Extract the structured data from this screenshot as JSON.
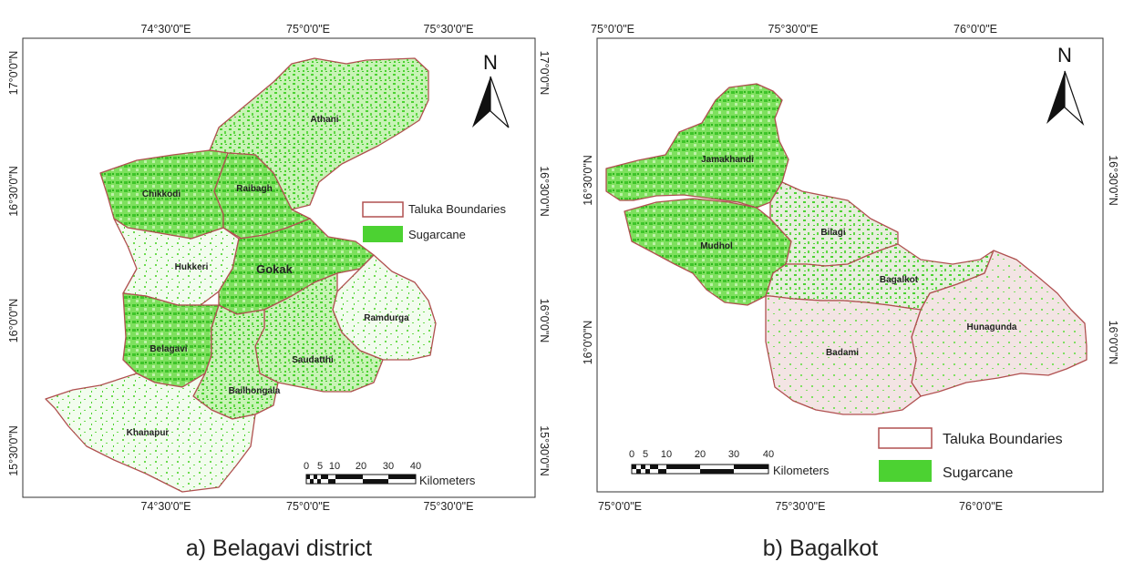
{
  "colors": {
    "sugarcane": "#4cd232",
    "boundary": "#b05050",
    "bagalkot_fill": "#f3e4e4",
    "frame": "#333333"
  },
  "map_a": {
    "caption": "a) Belagavi district",
    "north": "N",
    "lon_top": [
      "74°30'0\"E",
      "75°0'0\"E",
      "75°30'0\"E"
    ],
    "lon_bottom": [
      "74°30'0\"E",
      "75°0'0\"E",
      "75°30'0\"E"
    ],
    "lat_left": [
      "17°0'0\"N",
      "16°30'0\"N",
      "16°0'0\"N",
      "15°30'0\"N"
    ],
    "lat_right": [
      "17°0'0\"N",
      "16°30'0\"N",
      "16°0'0\"N",
      "15°30'0\"N"
    ],
    "talukas": [
      "Athani",
      "Chikkodi",
      "Raibagh",
      "Hukkeri",
      "Gokak",
      "Ramdurga",
      "Belagavi",
      "Saudatthi",
      "Bailhongala",
      "Khanapur"
    ],
    "legend": [
      "Taluka Boundaries",
      "Sugarcane"
    ],
    "scale_ticks": [
      "0",
      "5",
      "10",
      "20",
      "30",
      "40"
    ],
    "scale_unit": "Kilometers"
  },
  "map_b": {
    "caption": "b) Bagalkot",
    "north": "N",
    "lon_top": [
      "75°0'0\"E",
      "75°30'0\"E",
      "76°0'0\"E"
    ],
    "lon_bottom": [
      "75°0'0\"E",
      "75°30'0\"E",
      "76°0'0\"E"
    ],
    "lat_left": [
      "16°30'0\"N",
      "16°0'0\"N"
    ],
    "lat_right": [
      "16°30'0\"N",
      "16°0'0\"N"
    ],
    "talukas": [
      "Jamakhandi",
      "Bilagi",
      "Mudhol",
      "Bagalkot",
      "Hunagunda",
      "Badami"
    ],
    "legend": [
      "Taluka Boundaries",
      "Sugarcane"
    ],
    "scale_ticks": [
      "0",
      "5",
      "10",
      "20",
      "30",
      "40"
    ],
    "scale_unit": "Kilometers"
  }
}
